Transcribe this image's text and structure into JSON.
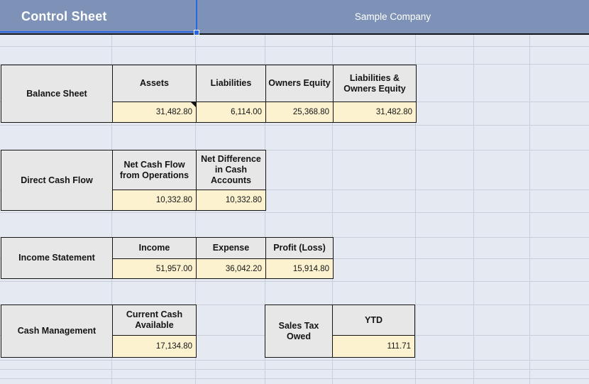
{
  "header": {
    "title": "Control Sheet",
    "company": "Sample Company"
  },
  "sections": {
    "balance_sheet": {
      "label": "Balance Sheet",
      "columns": [
        "Assets",
        "Liabilities",
        "Owners Equity",
        "Liabilities & Owners Equity"
      ],
      "values": [
        "31,482.80",
        "6,114.00",
        "25,368.80",
        "31,482.80"
      ]
    },
    "direct_cash_flow": {
      "label": "Direct Cash Flow",
      "columns": [
        "Net Cash Flow from Operations",
        "Net Difference in Cash Accounts"
      ],
      "values": [
        "10,332.80",
        "10,332.80"
      ]
    },
    "income_statement": {
      "label": "Income Statement",
      "columns": [
        "Income",
        "Expense",
        "Profit (Loss)"
      ],
      "values": [
        "51,957.00",
        "36,042.20",
        "15,914.80"
      ]
    },
    "cash_management": {
      "label": "Cash Management",
      "columns": [
        "Current Cash Available"
      ],
      "values": [
        "17,134.80"
      ]
    },
    "sales_tax": {
      "label": "Sales Tax Owed",
      "columns": [
        "YTD"
      ],
      "values": [
        "111.71"
      ]
    }
  },
  "colors": {
    "title_band": "#7d92b6",
    "cell_header_bg": "#e8e7e8",
    "cell_value_bg": "#fcf2d0",
    "selection_blue": "#2a66dd",
    "sheet_bg": "#e5e9f1",
    "gridline": "#c9cfda",
    "table_border": "#141414"
  }
}
